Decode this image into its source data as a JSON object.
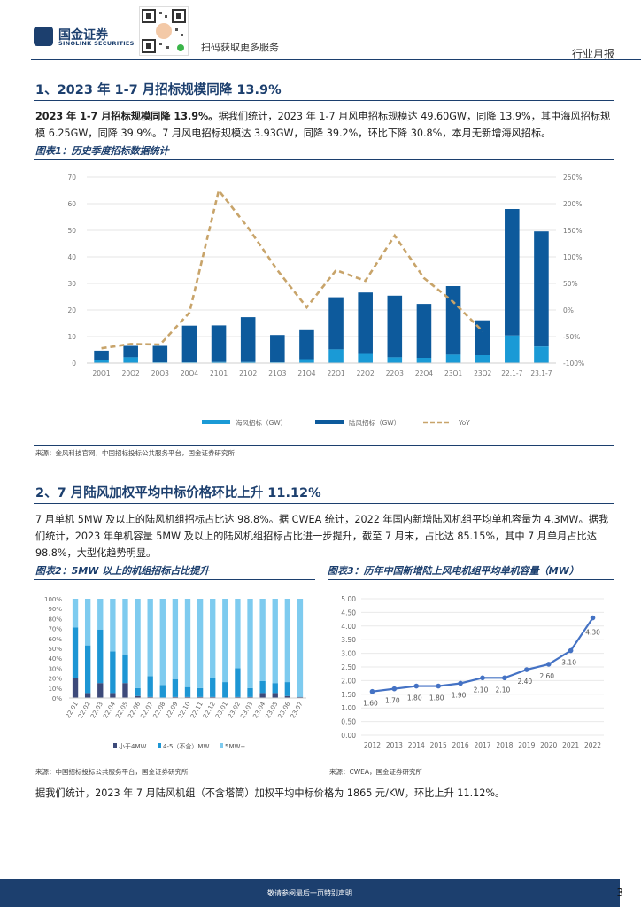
{
  "header": {
    "logo_cn": "国金证券",
    "logo_en": "SINOLINK SECURITIES",
    "qr_caption": "扫码获取更多服务",
    "report_type": "行业月报"
  },
  "section1": {
    "title": "1、2023 年 1-7 月招标规模同降 13.9%",
    "para_bold": "2023 年 1-7 月招标规模同降 13.9%。",
    "para_rest": "据我们统计，2023 年 1-7 月风电招标规模达 49.60GW，同降 13.9%，其中海风招标规模 6.25GW，同降 39.9%。7 月风电招标规模达 3.93GW，同降 39.2%，环比下降 30.8%，本月无新增海风招标。"
  },
  "figure1": {
    "title": "图表1：历史季度招标数据统计",
    "source": "来源：金风科技官网，中国招标投标公共服务平台，国金证券研究所",
    "chart_data": {
      "type": "bar",
      "stacked": true,
      "categories": [
        "20Q1",
        "20Q2",
        "20Q3",
        "20Q4",
        "21Q1",
        "21Q2",
        "21Q3",
        "21Q4",
        "22Q1",
        "22Q2",
        "22Q3",
        "22Q4",
        "23Q1",
        "23Q2",
        "22.1-7",
        "23.1-7"
      ],
      "series": [
        {
          "name": "海风招标（GW）",
          "color": "#1a9ad6",
          "values": [
            1.0,
            2.2,
            0.3,
            0.3,
            0.4,
            0.4,
            0.3,
            1.5,
            5.2,
            3.5,
            2.2,
            2.0,
            3.2,
            3.0,
            10.4,
            6.25
          ]
        },
        {
          "name": "陆风招标（GW）",
          "color": "#0d5a9c",
          "values": [
            3.7,
            4.3,
            6.2,
            13.8,
            13.8,
            16.9,
            10.3,
            10.9,
            19.6,
            23.1,
            23.2,
            20.3,
            25.8,
            13.1,
            47.6,
            43.35
          ]
        },
        {
          "name": "YoY",
          "color": "#c8a46a",
          "type": "line",
          "values": [
            -72,
            -64,
            -65,
            -5,
            225,
            155,
            75,
            5,
            75,
            55,
            140,
            60,
            15,
            -40,
            null,
            null
          ]
        }
      ],
      "ylim_left": [
        0,
        70
      ],
      "yticks_left": [
        "0",
        "10",
        "20",
        "30",
        "40",
        "50",
        "60",
        "70"
      ],
      "ylim_right": [
        -100,
        250
      ],
      "yticks_right": [
        "-100%",
        "-50%",
        "0%",
        "50%",
        "100%",
        "150%",
        "200%",
        "250%"
      ],
      "legend": "bottom"
    }
  },
  "section2": {
    "title": "2、7 月陆风加权平均中标价格环比上升 11.12%",
    "para": "7 月单机 5MW 及以上的陆风机组招标占比达 98.8%。据 CWEA 统计，2022 年国内新增陆风机组平均单机容量为 4.3MW。据我们统计，2023 年单机容量 5MW 及以上的陆风机组招标占比进一步提升，截至 7 月末，占比达 85.15%，其中 7 月单月占比达 98.8%，大型化趋势明显。",
    "closing": "据我们统计，2023 年 7 月陆风机组（不含塔筒）加权平均中标价格为 1865 元/KW，环比上升 11.12%。"
  },
  "figure2": {
    "title": "图表2：5MW 以上的机组招标占比提升",
    "source": "来源：中国招标投标公共服务平台，国金证券研究所",
    "chart_data": {
      "type": "bar",
      "stacked": true,
      "categories": [
        "22.01",
        "22.02",
        "22.03",
        "22.04",
        "22.05",
        "22.06",
        "22.07",
        "22.08",
        "22.09",
        "22.10",
        "22.11",
        "22.12",
        "23.01",
        "23.02",
        "23.03",
        "23.04",
        "23.05",
        "23.06",
        "23.07"
      ],
      "series": [
        {
          "name": "小于4MW",
          "color": "#3d4a7a",
          "values": [
            20,
            5,
            15,
            5,
            15,
            2,
            1,
            0,
            1,
            1,
            1,
            1,
            0,
            1,
            1,
            5,
            5,
            2,
            1
          ]
        },
        {
          "name": "4-5（不含）MW",
          "color": "#1d96d4",
          "values": [
            51,
            48,
            54,
            42,
            29,
            8,
            21,
            13,
            18,
            10,
            9,
            19,
            16,
            29,
            9,
            12,
            10,
            14,
            0.2
          ]
        },
        {
          "name": "5MW+",
          "color": "#7ecbef",
          "values": [
            29,
            47,
            31,
            53,
            56,
            90,
            78,
            87,
            81,
            89,
            90,
            80,
            84,
            70,
            90,
            83,
            85,
            84,
            98.8
          ]
        }
      ],
      "ylim": [
        0,
        100
      ],
      "yticks": [
        "0%",
        "10%",
        "20%",
        "30%",
        "40%",
        "50%",
        "60%",
        "70%",
        "80%",
        "90%",
        "100%"
      ],
      "legend": "bottom"
    }
  },
  "figure3": {
    "title": "图表3：历年中国新增陆上风电机组平均单机容量（MW）",
    "source": "来源：CWEA，国金证券研究所",
    "chart_data": {
      "type": "line",
      "x": [
        "2012",
        "2013",
        "2014",
        "2015",
        "2016",
        "2017",
        "2018",
        "2019",
        "2020",
        "2021",
        "2022"
      ],
      "values": [
        1.6,
        1.7,
        1.8,
        1.8,
        1.9,
        2.1,
        2.1,
        2.4,
        2.6,
        3.1,
        4.3
      ],
      "labels": [
        "1.60",
        "1.70",
        "1.80",
        "1.80",
        "1.90",
        "2.10",
        "2.10",
        "2.40",
        "2.60",
        "3.10",
        "4.30"
      ],
      "color": "#4472c4",
      "ylim": [
        0,
        5
      ],
      "yticks": [
        "0.00",
        "0.50",
        "1.00",
        "1.50",
        "2.00",
        "2.50",
        "3.00",
        "3.50",
        "4.00",
        "4.50",
        "5.00"
      ]
    }
  },
  "footer": {
    "disclaimer": "敬请参阅最后一页特别声明",
    "page": "3"
  }
}
